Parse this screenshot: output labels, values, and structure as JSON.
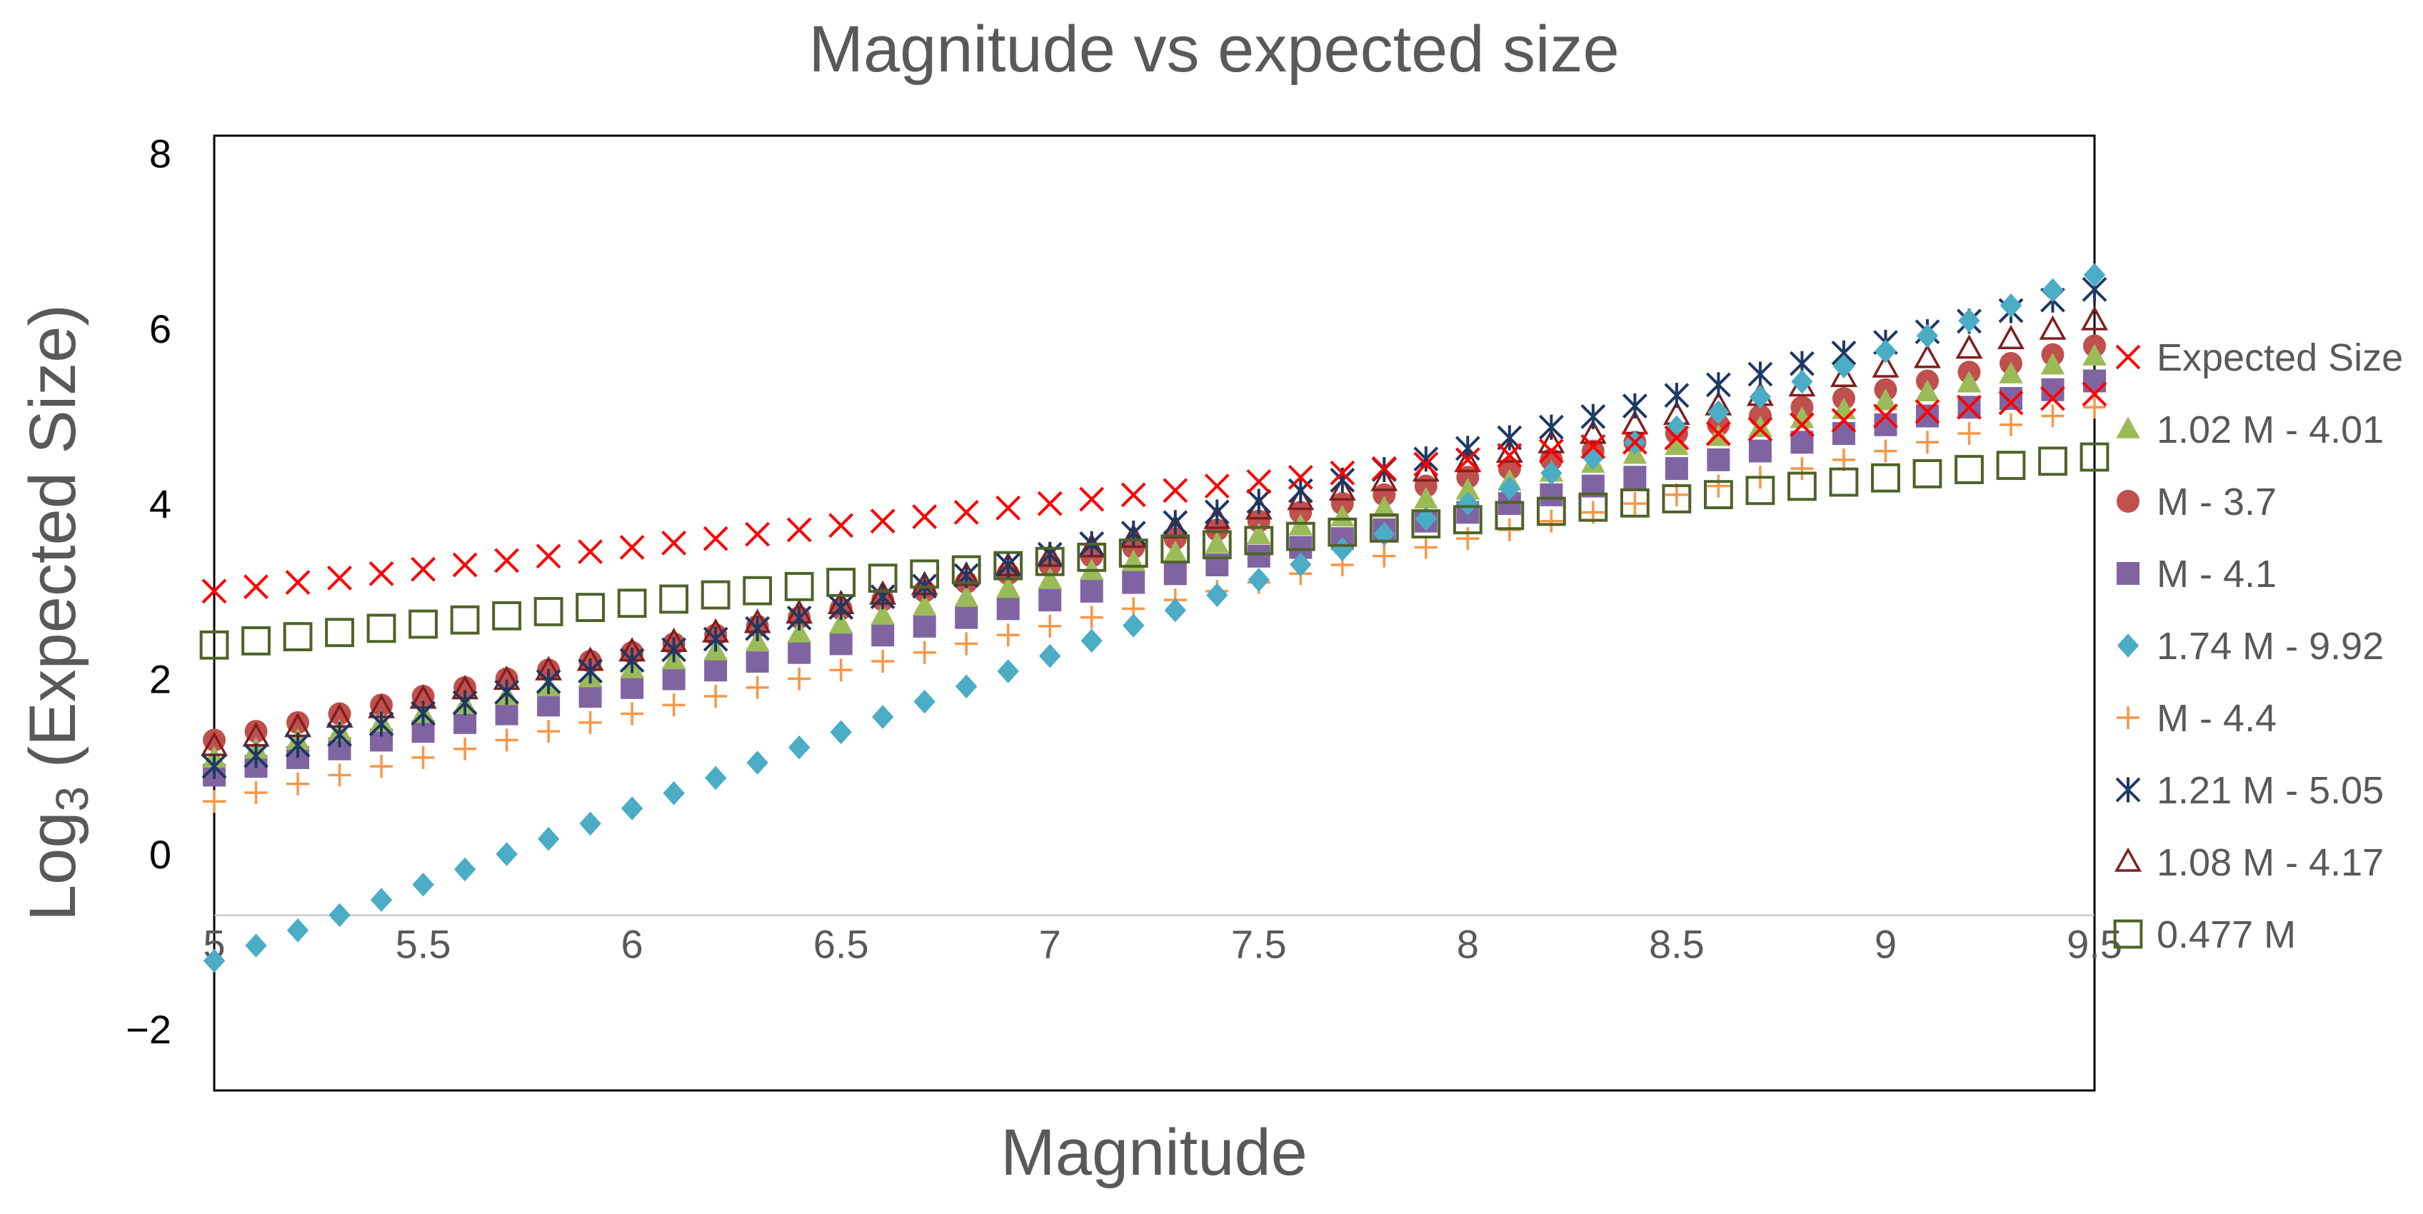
{
  "chart_data": {
    "type": "scatter",
    "title": "Magnitude vs expected size",
    "xlabel": "Magnitude",
    "ylabel_prefix": "Log",
    "ylabel_sub": "3",
    "ylabel_suffix": " (Expected Size)",
    "xlim": [
      5,
      9.5
    ],
    "ylim": [
      -2.7,
      8.2
    ],
    "x_axis_crosses_y_at": -0.7,
    "x_ticks": [
      5,
      5.5,
      6,
      6.5,
      7,
      7.5,
      8,
      8.5,
      9,
      9.5
    ],
    "x_tick_labels": [
      "5",
      "5.5",
      "6",
      "6.5",
      "7",
      "7.5",
      "8",
      "8.5",
      "9",
      "9.5"
    ],
    "y_ticks": [
      -2,
      0,
      2,
      4,
      6,
      8
    ],
    "y_tick_labels": [
      "−2",
      "0",
      "2",
      "4",
      "6",
      "8"
    ],
    "x": [
      5.0,
      5.1,
      5.2,
      5.3,
      5.4,
      5.5,
      5.6,
      5.7,
      5.8,
      5.9,
      6.0,
      6.1,
      6.2,
      6.3,
      6.4,
      6.5,
      6.6,
      6.7,
      6.8,
      6.9,
      7.0,
      7.1,
      7.2,
      7.3,
      7.4,
      7.5,
      7.6,
      7.7,
      7.8,
      7.9,
      8.0,
      8.1,
      8.2,
      8.3,
      8.4,
      8.5,
      8.6,
      8.7,
      8.8,
      8.9,
      9.0,
      9.1,
      9.2,
      9.3,
      9.4,
      9.5
    ],
    "legend_position": "right",
    "series": [
      {
        "name": "Expected Size",
        "marker": "x",
        "color": "#ff0000",
        "slope": 0.5,
        "intercept": 0.5
      },
      {
        "name": "1.02 M - 4.01",
        "marker": "triangle-filled",
        "color": "#9bbb59",
        "slope": 1.02,
        "intercept": -4.01
      },
      {
        "name": "M - 3.7",
        "marker": "circle",
        "color": "#c0504d",
        "slope": 1.0,
        "intercept": -3.7
      },
      {
        "name": "M - 4.1",
        "marker": "square-filled",
        "color": "#8064a2",
        "slope": 1.0,
        "intercept": -4.1
      },
      {
        "name": "1.74 M - 9.92",
        "marker": "diamond",
        "color": "#4bacc6",
        "slope": 1.74,
        "intercept": -9.92
      },
      {
        "name": "M - 4.4",
        "marker": "plus",
        "color": "#f79646",
        "slope": 1.0,
        "intercept": -4.4
      },
      {
        "name": "1.21 M - 5.05",
        "marker": "star",
        "color": "#1f3864",
        "slope": 1.21,
        "intercept": -5.05
      },
      {
        "name": "1.08 M - 4.17",
        "marker": "triangle-open",
        "color": "#7f1f1f",
        "slope": 1.08,
        "intercept": -4.17
      },
      {
        "name": "0.477 M",
        "marker": "square-open",
        "color": "#4f6228",
        "slope": 0.477,
        "intercept": 0.0
      }
    ]
  }
}
